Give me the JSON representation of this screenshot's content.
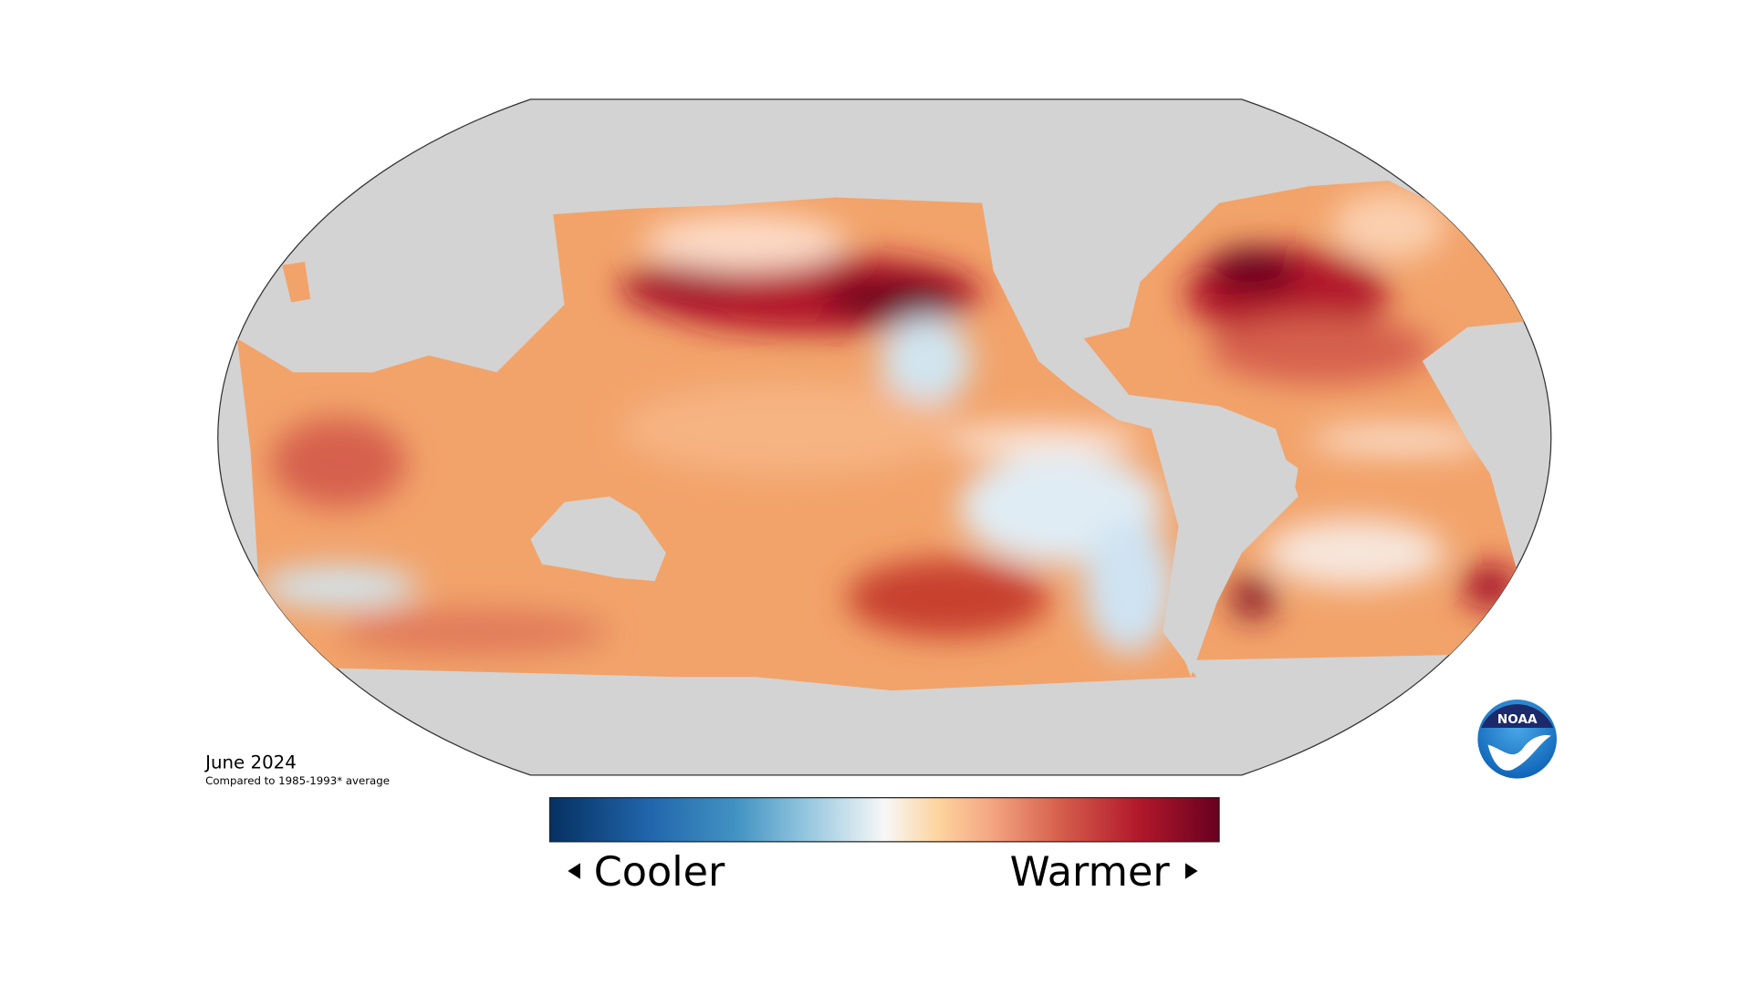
{
  "date": "June 2024",
  "subtitle": "Compared to 1985-1993* average",
  "legend": {
    "low": "Cooler",
    "high": "Warmer"
  },
  "logo": "NOAA"
}
